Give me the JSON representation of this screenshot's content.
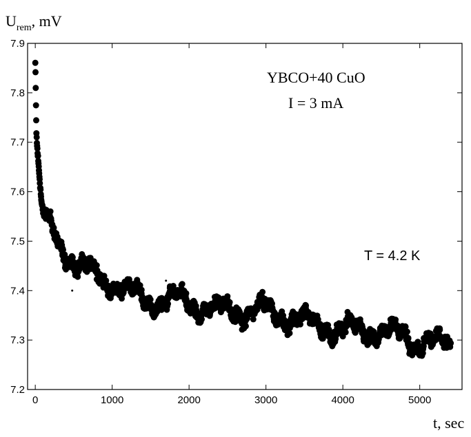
{
  "chart_data": {
    "type": "scatter",
    "title": "",
    "xlabel": "t, sec",
    "ylabel_main": "U",
    "ylabel_sub": "rem",
    "ylabel_unit": ", mV",
    "xlim": [
      -100,
      5550
    ],
    "ylim": [
      7.2,
      7.9
    ],
    "x_ticks": [
      0,
      1000,
      2000,
      3000,
      4000,
      5000
    ],
    "x_tick_labels": [
      "0",
      "1000",
      "2000",
      "3000",
      "4000",
      "5000"
    ],
    "y_ticks": [
      7.2,
      7.3,
      7.4,
      7.5,
      7.6,
      7.7,
      7.8,
      7.9
    ],
    "y_tick_labels": [
      "7.2",
      "7.3",
      "7.4",
      "7.5",
      "7.6",
      "7.7",
      "7.8",
      "7.9"
    ],
    "grid": false,
    "marker_color": "#000000",
    "annotations": [
      {
        "text": "YBCO+40 CuO"
      },
      {
        "text": "I = 3 mA"
      },
      {
        "text": "T = 4.2 K"
      }
    ],
    "series": [
      {
        "x": [
          0,
          5,
          10,
          15,
          20,
          30,
          40,
          50,
          60,
          70,
          80,
          90,
          100,
          120,
          140,
          160,
          180,
          200,
          230,
          260,
          300,
          350,
          400,
          450,
          500,
          550,
          600,
          650,
          700,
          750,
          800,
          850,
          900,
          950,
          1000,
          1050,
          1100,
          1150,
          1200,
          1250,
          1300,
          1350,
          1400,
          1450,
          1500,
          1550,
          1600,
          1650,
          1700,
          1750,
          1800,
          1850,
          1900,
          1950,
          2000,
          2100,
          2200,
          2300,
          2400,
          2500,
          2600,
          2700,
          2800,
          2900,
          3000,
          3100,
          3200,
          3300,
          3400,
          3500,
          3600,
          3700,
          3800,
          3900,
          4000,
          4100,
          4200,
          4300,
          4400,
          4500,
          4600,
          4700,
          4800,
          4900,
          5000,
          5100,
          5200,
          5300,
          5400
        ],
        "y": [
          7.86,
          7.82,
          7.76,
          7.72,
          7.7,
          7.68,
          7.66,
          7.64,
          7.62,
          7.6,
          7.58,
          7.57,
          7.56,
          7.55,
          7.54,
          7.53,
          7.53,
          7.52,
          7.52,
          7.51,
          7.5,
          7.49,
          7.48,
          7.47,
          7.46,
          7.45,
          7.45,
          7.44,
          7.44,
          7.43,
          7.43,
          7.43,
          7.42,
          7.42,
          7.42,
          7.41,
          7.41,
          7.4,
          7.4,
          7.39,
          7.39,
          7.39,
          7.38,
          7.38,
          7.38,
          7.38,
          7.38,
          7.38,
          7.38,
          7.38,
          7.38,
          7.38,
          7.38,
          7.38,
          7.37,
          7.37,
          7.37,
          7.36,
          7.36,
          7.36,
          7.36,
          7.36,
          7.36,
          7.36,
          7.36,
          7.35,
          7.35,
          7.35,
          7.34,
          7.34,
          7.33,
          7.33,
          7.33,
          7.32,
          7.32,
          7.32,
          7.32,
          7.32,
          7.32,
          7.32,
          7.31,
          7.31,
          7.31,
          7.3,
          7.3,
          7.3,
          7.29,
          7.29,
          7.29
        ]
      }
    ]
  }
}
